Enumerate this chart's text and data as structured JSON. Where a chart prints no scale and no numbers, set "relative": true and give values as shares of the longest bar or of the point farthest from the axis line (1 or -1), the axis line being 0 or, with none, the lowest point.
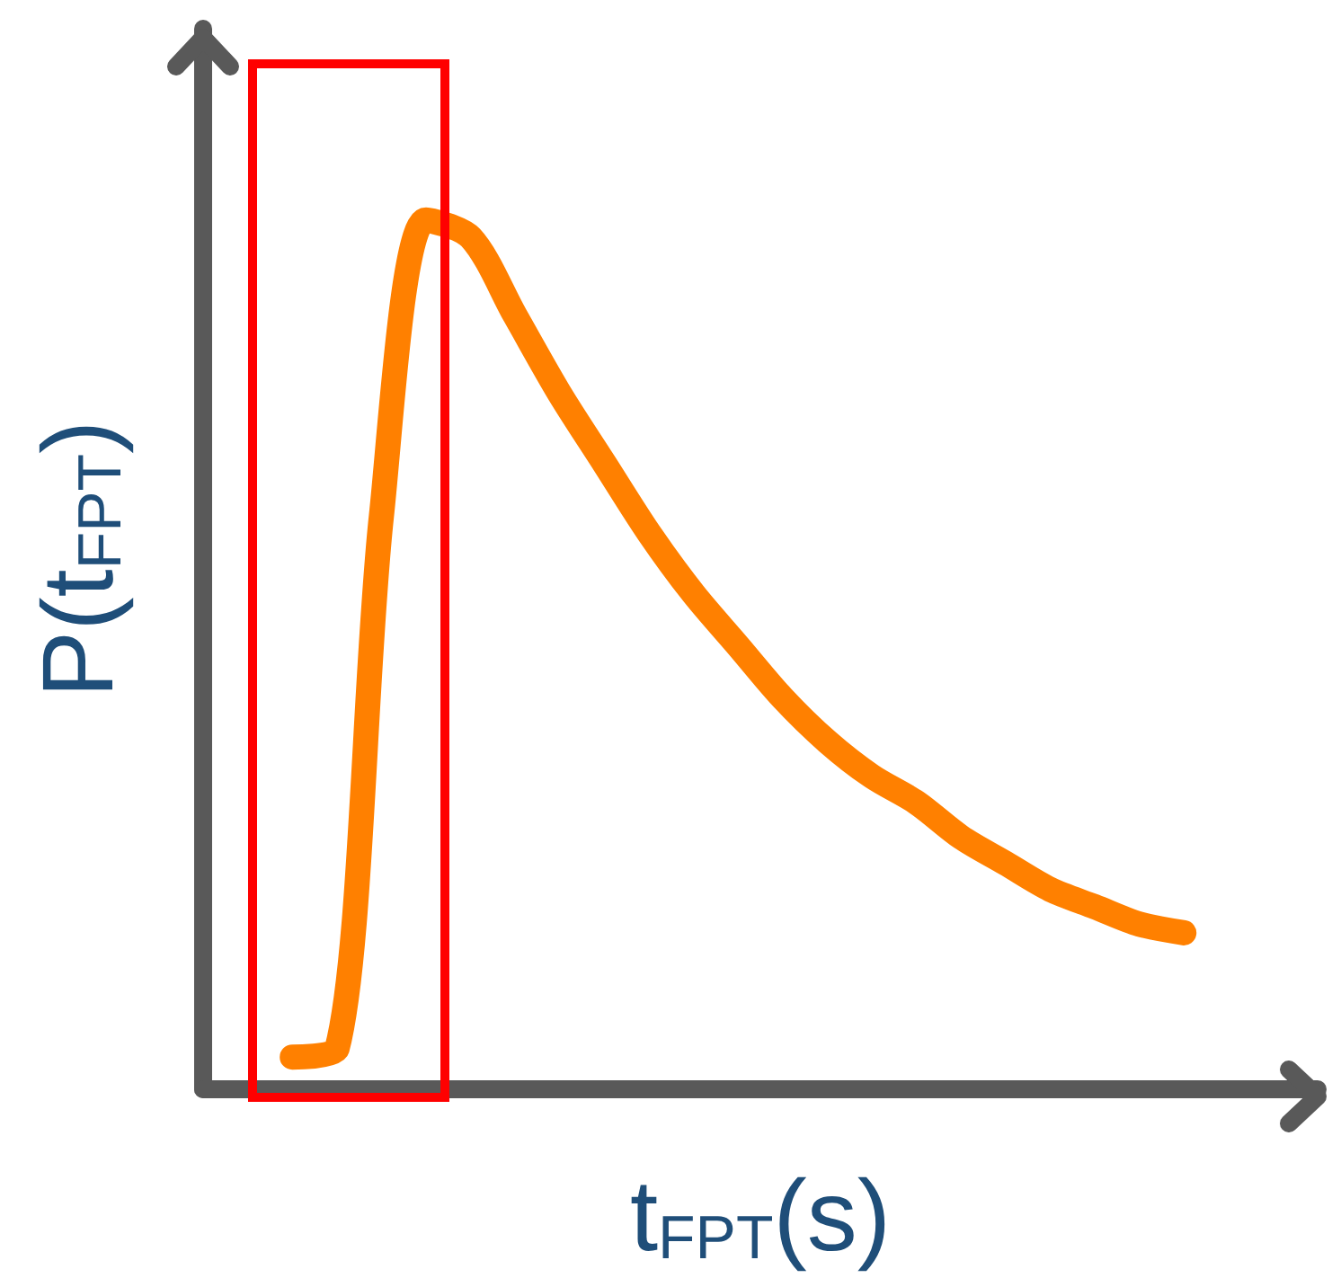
{
  "chart_data": {
    "type": "line",
    "relative": true,
    "xlabel": "t$_{FPT}$(s)",
    "ylabel": "P(t$_{FPT}$)",
    "categories": [
      null,
      null,
      null,
      null,
      null,
      null,
      null,
      null,
      null,
      null,
      null,
      null,
      null,
      null,
      null,
      null,
      null,
      null,
      null,
      null,
      null
    ],
    "series": [
      {
        "color": "#ff8000",
        "values": [
          0.037,
          0.046,
          0.66,
          1,
          0.98,
          0.89,
          0.8,
          0.72,
          0.64,
          0.57,
          0.51,
          0.45,
          0.4,
          0.36,
          0.33,
          0.29,
          0.26,
          0.23,
          0.21,
          0.19,
          0.18
        ]
      }
    ],
    "grid": false,
    "line_style": "solid"
  }
}
